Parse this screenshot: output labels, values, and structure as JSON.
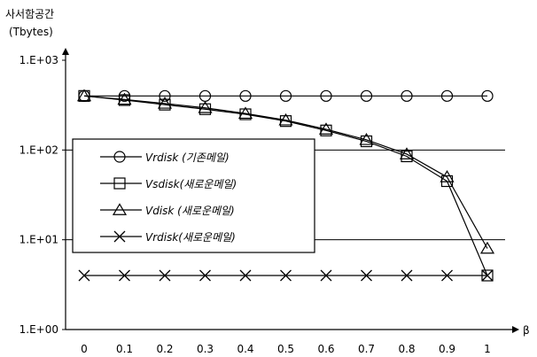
{
  "chart_data": {
    "type": "line",
    "ylabel_line1": "사서함공간",
    "ylabel_line2": "(Tbytes)",
    "xlabel": "β",
    "yscale": "log",
    "ylim": [
      1,
      1000
    ],
    "ytick_labels": [
      "1.E+00",
      "1.E+01",
      "1.E+02",
      "1.E+03"
    ],
    "ytick_values": [
      1,
      10,
      100,
      1000
    ],
    "x": [
      0,
      0.1,
      0.2,
      0.3,
      0.4,
      0.5,
      0.6,
      0.7,
      0.8,
      0.9,
      1
    ],
    "xtick_labels": [
      "0",
      "0.1",
      "0.2",
      "0.3",
      "0.4",
      "0.5",
      "0.6",
      "0.7",
      "0.8",
      "0.9",
      "1"
    ],
    "grid": "horizontal",
    "legend_position": "left",
    "series": [
      {
        "name": "Vrdisk (기존메일)",
        "marker": "circle",
        "values": [
          400,
          400,
          400,
          400,
          400,
          400,
          400,
          400,
          400,
          400,
          400
        ]
      },
      {
        "name": "Vsdisk(새로운메일)",
        "marker": "square",
        "values": [
          400,
          360,
          320,
          285,
          250,
          210,
          165,
          125,
          85,
          45,
          4
        ]
      },
      {
        "name": "Vdisk (새로운메일)",
        "marker": "triangle",
        "values": [
          400,
          365,
          330,
          295,
          255,
          215,
          170,
          130,
          90,
          50,
          8
        ]
      },
      {
        "name": "Vrdisk(새로운메일)",
        "marker": "x",
        "values": [
          4,
          4,
          4,
          4,
          4,
          4,
          4,
          4,
          4,
          4,
          4
        ]
      }
    ]
  }
}
